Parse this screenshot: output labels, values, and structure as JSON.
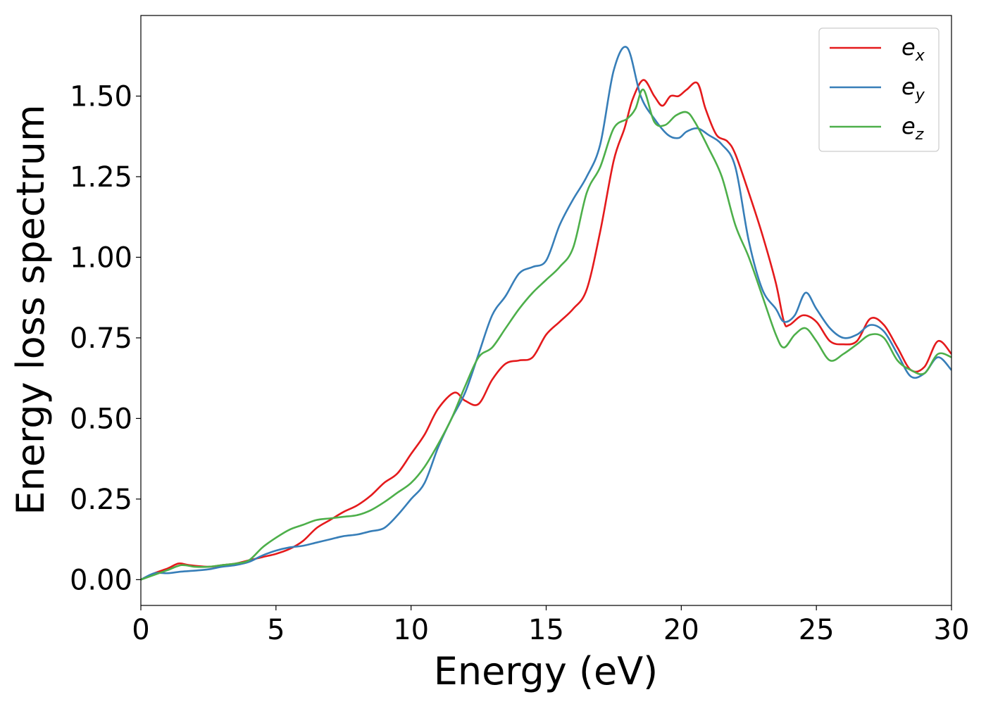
{
  "chart_data": {
    "type": "line",
    "title": "",
    "xlabel": "Energy (eV)",
    "ylabel": "Energy loss spectrum",
    "xlim": [
      0,
      30
    ],
    "ylim": [
      -0.08,
      1.75
    ],
    "xticks": [
      0,
      5,
      10,
      15,
      20,
      25,
      30
    ],
    "xtick_labels": [
      "0",
      "5",
      "10",
      "15",
      "20",
      "25",
      "30"
    ],
    "yticks": [
      0,
      0.25,
      0.5,
      0.75,
      1.0,
      1.25,
      1.5
    ],
    "ytick_labels": [
      "0.00",
      "0.25",
      "0.50",
      "0.75",
      "1.00",
      "1.25",
      "1.50"
    ],
    "grid": false,
    "legend_position": "top-right",
    "series": [
      {
        "name": "e_x",
        "legend_base": "e",
        "legend_sub": "x",
        "color": "#e41a1c",
        "x": [
          0,
          0.5,
          1.0,
          1.4,
          1.8,
          2.5,
          3.0,
          3.5,
          4.0,
          4.5,
          5.0,
          5.5,
          6.0,
          6.5,
          7.0,
          7.5,
          8.0,
          8.5,
          9.0,
          9.5,
          10.0,
          10.5,
          11.0,
          11.6,
          12.0,
          12.5,
          13.0,
          13.5,
          14.0,
          14.5,
          15.0,
          15.5,
          16.0,
          16.5,
          17.0,
          17.5,
          17.9,
          18.2,
          18.6,
          19.0,
          19.3,
          19.6,
          19.9,
          20.2,
          20.6,
          20.9,
          21.3,
          21.7,
          22.0,
          22.5,
          23.0,
          23.5,
          23.8,
          24.0,
          24.5,
          25.0,
          25.5,
          26.0,
          26.5,
          27.0,
          27.5,
          28.0,
          28.5,
          29.0,
          29.5,
          30.0
        ],
        "y": [
          0.0,
          0.02,
          0.035,
          0.05,
          0.045,
          0.04,
          0.045,
          0.05,
          0.06,
          0.07,
          0.08,
          0.095,
          0.12,
          0.16,
          0.185,
          0.21,
          0.23,
          0.26,
          0.3,
          0.33,
          0.39,
          0.45,
          0.53,
          0.58,
          0.555,
          0.545,
          0.62,
          0.67,
          0.68,
          0.69,
          0.76,
          0.8,
          0.84,
          0.9,
          1.08,
          1.3,
          1.4,
          1.49,
          1.55,
          1.5,
          1.47,
          1.5,
          1.5,
          1.52,
          1.54,
          1.46,
          1.38,
          1.36,
          1.32,
          1.2,
          1.07,
          0.92,
          0.8,
          0.79,
          0.82,
          0.8,
          0.74,
          0.73,
          0.74,
          0.81,
          0.79,
          0.72,
          0.65,
          0.66,
          0.74,
          0.7
        ]
      },
      {
        "name": "e_y",
        "legend_base": "e",
        "legend_sub": "y",
        "color": "#377eb8",
        "x": [
          0,
          0.5,
          1.0,
          1.5,
          2.0,
          2.5,
          3.0,
          3.5,
          4.0,
          4.5,
          5.0,
          5.5,
          6.0,
          6.5,
          7.0,
          7.5,
          8.0,
          8.5,
          9.0,
          9.5,
          10.0,
          10.5,
          11.0,
          11.5,
          12.0,
          12.5,
          13.0,
          13.5,
          14.0,
          14.5,
          15.0,
          15.5,
          16.0,
          16.5,
          17.0,
          17.5,
          18.0,
          18.5,
          19.0,
          19.5,
          19.9,
          20.2,
          20.6,
          21.0,
          21.5,
          22.0,
          22.5,
          23.0,
          23.5,
          23.8,
          24.2,
          24.6,
          25.0,
          25.5,
          26.0,
          26.5,
          27.0,
          27.5,
          28.0,
          28.5,
          29.0,
          29.5,
          30.0
        ],
        "y": [
          0.0,
          0.02,
          0.02,
          0.025,
          0.028,
          0.032,
          0.04,
          0.045,
          0.055,
          0.075,
          0.09,
          0.1,
          0.105,
          0.115,
          0.125,
          0.135,
          0.14,
          0.15,
          0.16,
          0.2,
          0.25,
          0.3,
          0.41,
          0.5,
          0.58,
          0.7,
          0.82,
          0.88,
          0.95,
          0.97,
          0.99,
          1.1,
          1.18,
          1.25,
          1.35,
          1.58,
          1.65,
          1.5,
          1.43,
          1.38,
          1.37,
          1.39,
          1.4,
          1.38,
          1.35,
          1.28,
          1.05,
          0.9,
          0.84,
          0.8,
          0.82,
          0.89,
          0.84,
          0.78,
          0.75,
          0.76,
          0.79,
          0.77,
          0.7,
          0.63,
          0.64,
          0.69,
          0.65
        ]
      },
      {
        "name": "e_z",
        "legend_base": "e",
        "legend_sub": "z",
        "color": "#4daf4a",
        "x": [
          0,
          0.5,
          1.0,
          1.5,
          2.0,
          2.5,
          3.0,
          3.5,
          4.0,
          4.5,
          5.0,
          5.5,
          6.0,
          6.5,
          7.0,
          7.5,
          8.0,
          8.5,
          9.0,
          9.5,
          10.0,
          10.5,
          11.0,
          11.5,
          12.0,
          12.5,
          13.0,
          13.5,
          14.0,
          14.5,
          15.0,
          15.5,
          16.0,
          16.5,
          17.0,
          17.5,
          18.0,
          18.3,
          18.6,
          19.0,
          19.4,
          19.8,
          20.2,
          20.5,
          21.0,
          21.5,
          22.0,
          22.5,
          23.0,
          23.5,
          23.8,
          24.2,
          24.6,
          25.0,
          25.5,
          26.0,
          26.5,
          27.0,
          27.5,
          28.0,
          28.5,
          29.0,
          29.5,
          30.0
        ],
        "y": [
          0.0,
          0.015,
          0.03,
          0.045,
          0.04,
          0.04,
          0.045,
          0.05,
          0.06,
          0.1,
          0.13,
          0.155,
          0.17,
          0.185,
          0.19,
          0.195,
          0.2,
          0.215,
          0.24,
          0.27,
          0.3,
          0.35,
          0.42,
          0.5,
          0.6,
          0.69,
          0.72,
          0.78,
          0.84,
          0.89,
          0.93,
          0.97,
          1.03,
          1.2,
          1.28,
          1.4,
          1.43,
          1.46,
          1.52,
          1.42,
          1.41,
          1.44,
          1.45,
          1.42,
          1.34,
          1.25,
          1.1,
          1.0,
          0.88,
          0.76,
          0.72,
          0.76,
          0.78,
          0.74,
          0.68,
          0.7,
          0.73,
          0.76,
          0.75,
          0.68,
          0.65,
          0.64,
          0.7,
          0.69
        ]
      }
    ]
  }
}
